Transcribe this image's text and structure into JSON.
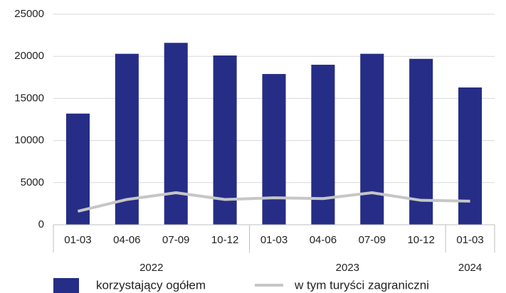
{
  "chart_data": {
    "type": "bar",
    "groups": [
      {
        "name": "2022",
        "categories": [
          "01-03",
          "04-06",
          "07-09",
          "10-12"
        ]
      },
      {
        "name": "2023",
        "categories": [
          "01-03",
          "04-06",
          "07-09",
          "10-12"
        ]
      },
      {
        "name": "2024",
        "categories": [
          "01-03"
        ]
      }
    ],
    "series": [
      {
        "name": "korzystający ogółem",
        "type": "bar",
        "color": "#262d86",
        "values": [
          13200,
          20300,
          21600,
          20100,
          17900,
          19000,
          20300,
          19700,
          16300
        ]
      },
      {
        "name": "w tym turyści zagraniczni",
        "type": "line",
        "color": "#c6c6c6",
        "values": [
          1600,
          3000,
          3800,
          3000,
          3200,
          3100,
          3800,
          2900,
          2800
        ]
      }
    ],
    "ylim": [
      0,
      25000
    ],
    "yticks": [
      0,
      5000,
      10000,
      15000,
      20000,
      25000
    ],
    "grid": true
  }
}
